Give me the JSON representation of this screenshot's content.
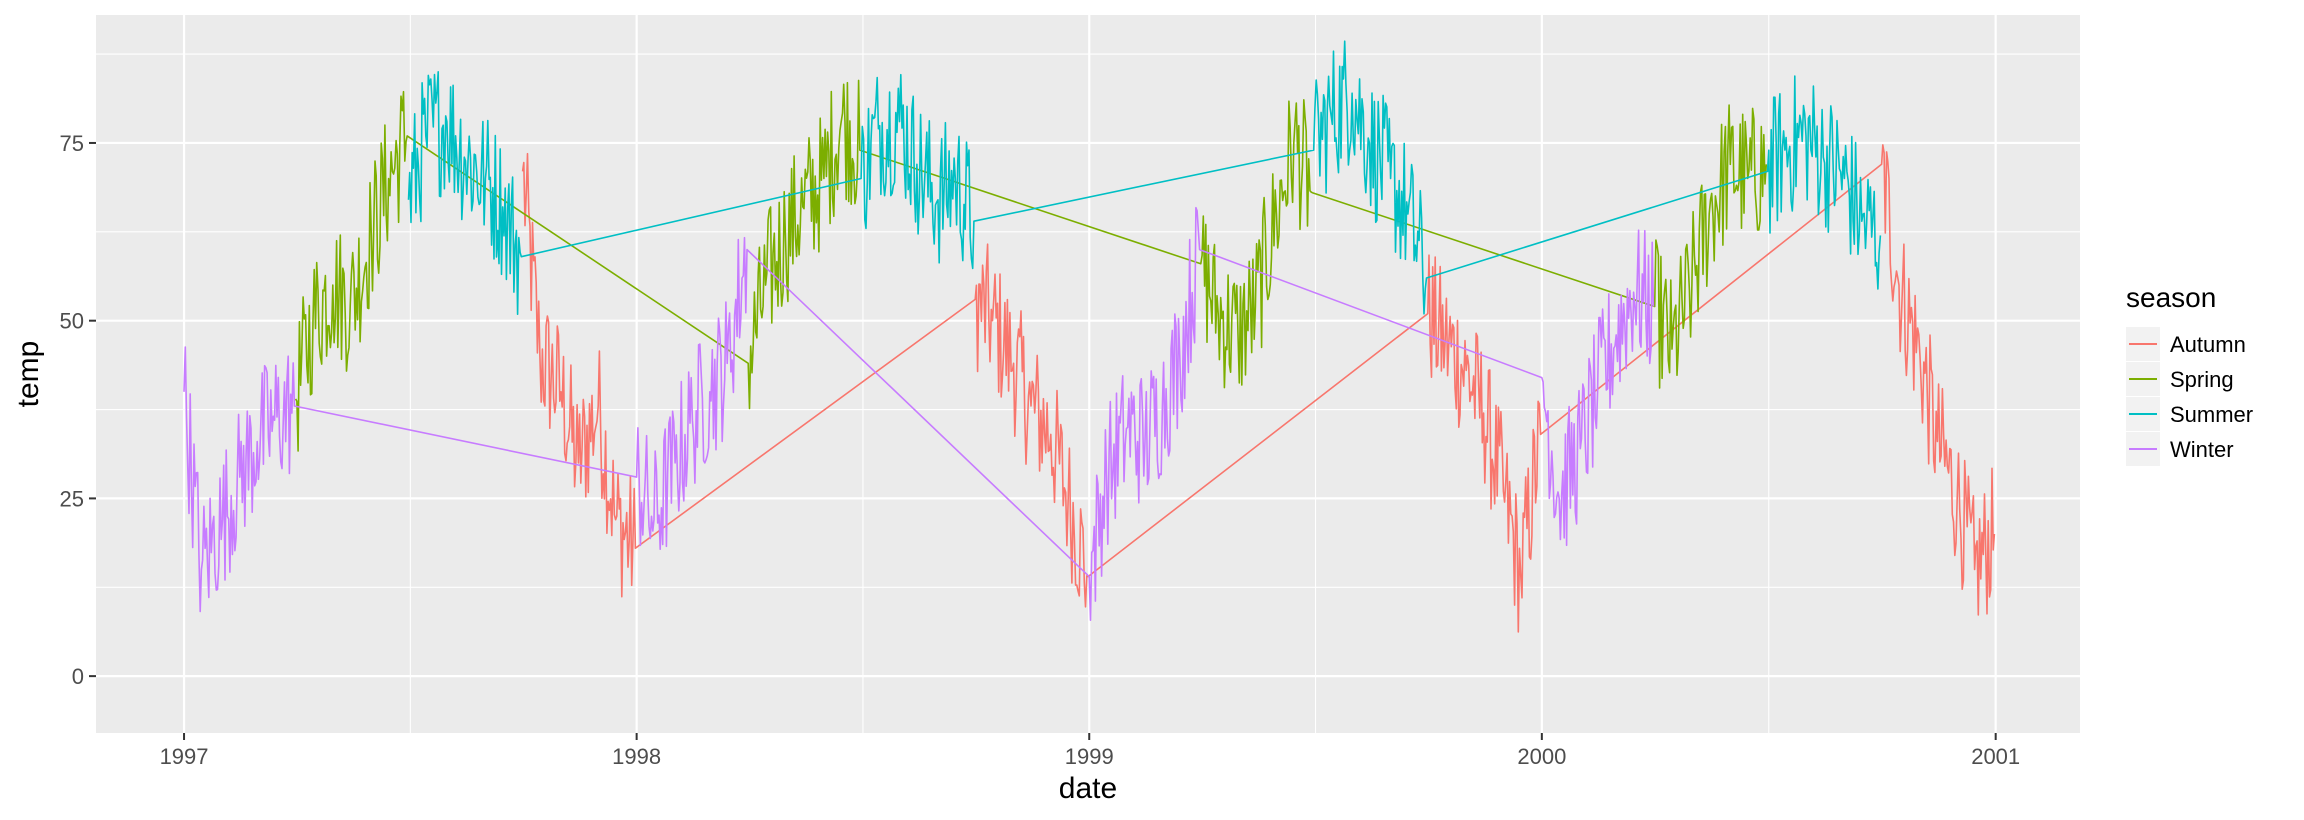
{
  "chart_data": {
    "type": "line",
    "title": "",
    "xlabel": "date",
    "ylabel": "temp",
    "x_type": "date",
    "xlim": [
      "1996-10-22",
      "2001-03-10"
    ],
    "ylim": [
      -8,
      93
    ],
    "x_ticks": [
      "1997",
      "1998",
      "1999",
      "2000",
      "2001"
    ],
    "x_tick_dates": [
      "1997-01-01",
      "1998-01-01",
      "1999-01-01",
      "2000-01-01",
      "2001-01-01"
    ],
    "y_ticks": [
      0,
      25,
      50,
      75
    ],
    "grid": true,
    "legend": {
      "title": "season",
      "position": "right"
    },
    "series": [
      {
        "name": "Autumn",
        "color": "#F8766D",
        "x": [
          "1997-10-01",
          "1997-10-15",
          "1997-11-01",
          "1997-11-15",
          "1997-12-01",
          "1997-12-15",
          "1997-12-31",
          "1998-10-01",
          "1998-10-15",
          "1998-11-01",
          "1998-11-15",
          "1998-12-01",
          "1998-12-15",
          "1998-12-31",
          "1999-10-01",
          "1999-10-15",
          "1999-11-01",
          "1999-11-15",
          "1999-12-01",
          "1999-12-15",
          "1999-12-31",
          "2000-10-01",
          "2000-10-15",
          "2000-11-01",
          "2000-11-15",
          "2000-12-01",
          "2000-12-15",
          "2000-12-31"
        ],
        "y": [
          71,
          45,
          40,
          30,
          38,
          22,
          18,
          53,
          50,
          44,
          38,
          34,
          25,
          14,
          51,
          47,
          43,
          37,
          26,
          14,
          34,
          72,
          55,
          45,
          33,
          25,
          15,
          20
        ]
      },
      {
        "name": "Spring",
        "color": "#7CAE00",
        "x": [
          "1997-04-01",
          "1997-04-15",
          "1997-05-01",
          "1997-05-15",
          "1997-06-01",
          "1997-06-15",
          "1997-06-30",
          "1998-04-01",
          "1998-04-15",
          "1998-05-01",
          "1998-05-15",
          "1998-06-01",
          "1998-06-15",
          "1998-06-30",
          "1999-04-01",
          "1999-04-15",
          "1999-05-01",
          "1999-05-15",
          "1999-06-01",
          "1999-06-15",
          "1999-06-30",
          "2000-04-01",
          "2000-04-15",
          "2000-05-01",
          "2000-05-15",
          "2000-06-01",
          "2000-06-15",
          "2000-06-30"
        ],
        "y": [
          39,
          50,
          55,
          52,
          62,
          70,
          76,
          44,
          55,
          62,
          66,
          70,
          78,
          74,
          58,
          51,
          48,
          52,
          65,
          75,
          68,
          52,
          46,
          55,
          65,
          72,
          70,
          72
        ]
      },
      {
        "name": "Summer",
        "color": "#00BFC4",
        "x": [
          "1997-07-01",
          "1997-07-15",
          "1997-08-01",
          "1997-08-15",
          "1997-09-01",
          "1997-09-15",
          "1997-09-30",
          "1998-07-01",
          "1998-07-15",
          "1998-08-01",
          "1998-08-15",
          "1998-09-01",
          "1998-09-15",
          "1998-09-30",
          "1999-07-01",
          "1999-07-15",
          "1999-08-01",
          "1999-08-15",
          "1999-09-01",
          "1999-09-15",
          "1999-09-30",
          "2000-07-01",
          "2000-07-15",
          "2000-08-01",
          "2000-08-15",
          "2000-09-01",
          "2000-09-15",
          "2000-09-30"
        ],
        "y": [
          67,
          76,
          78,
          73,
          70,
          66,
          59,
          70,
          77,
          78,
          72,
          67,
          70,
          64,
          74,
          79,
          82,
          75,
          70,
          65,
          56,
          71,
          74,
          76,
          73,
          70,
          64,
          62
        ]
      },
      {
        "name": "Winter",
        "color": "#C77CFF",
        "x": [
          "1997-01-01",
          "1997-01-15",
          "1997-02-01",
          "1997-02-15",
          "1997-03-01",
          "1997-03-15",
          "1997-03-31",
          "1998-01-01",
          "1998-01-15",
          "1998-02-01",
          "1998-02-15",
          "1998-03-01",
          "1998-03-15",
          "1998-03-31",
          "1999-01-01",
          "1999-01-15",
          "1999-02-01",
          "1999-02-15",
          "1999-03-01",
          "1999-03-15",
          "1999-03-31",
          "2000-01-01",
          "2000-01-15",
          "2000-02-01",
          "2000-02-15",
          "2000-03-01",
          "2000-03-15",
          "2000-03-31"
        ],
        "y": [
          40,
          15,
          22,
          28,
          33,
          36,
          38,
          28,
          22,
          30,
          36,
          40,
          44,
          60,
          14,
          28,
          35,
          33,
          38,
          45,
          60,
          42,
          25,
          32,
          40,
          48,
          54,
          52
        ]
      }
    ]
  }
}
